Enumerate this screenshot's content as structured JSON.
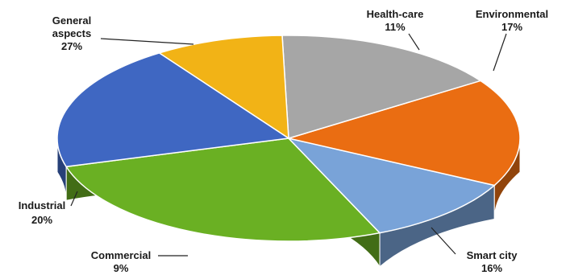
{
  "chart_data": {
    "type": "pie",
    "slices": [
      {
        "label": "General aspects",
        "value_label": "27%",
        "value": 27,
        "color": "#6ab023"
      },
      {
        "label": "Health-care",
        "value_label": "11%",
        "value": 11,
        "color": "#79a3d8"
      },
      {
        "label": "Environmental",
        "value_label": "17%",
        "value": 17,
        "color": "#ea6d12"
      },
      {
        "label": "Smart city",
        "value_label": "16%",
        "value": 16,
        "color": "#a6a6a6"
      },
      {
        "label": "Commercial",
        "value_label": "9%",
        "value": 9,
        "color": "#f2b316"
      },
      {
        "label": "Industrial",
        "value_label": "20%",
        "value": 20,
        "color": "#3f67c2"
      }
    ]
  }
}
